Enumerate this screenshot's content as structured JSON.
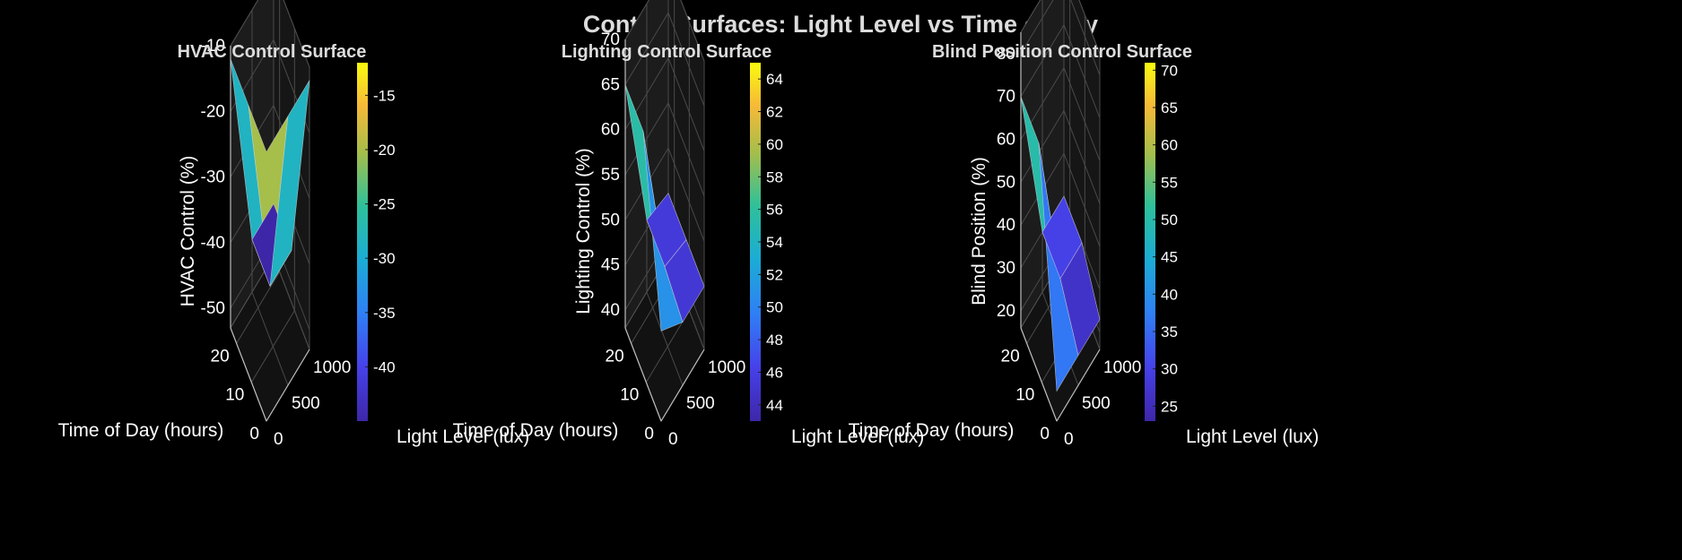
{
  "figure_title": "Control Surfaces: Light Level vs Time of Day",
  "chart_data": [
    {
      "type": "surface3d",
      "title": "HVAC Control Surface",
      "xlabel": "Time of Day (hours)",
      "ylabel": "Light Level (lux)",
      "zlabel": "HVAC Control (%)",
      "x_ticks": [
        "0",
        "10",
        "20"
      ],
      "y_ticks": [
        "0",
        "500",
        "1000"
      ],
      "z_ticks": [
        "-50",
        "-40",
        "-30",
        "-20",
        "-10"
      ],
      "zlim": [
        -53,
        -10
      ],
      "colorbar": {
        "ticks": [
          "-15",
          "-20",
          "-25",
          "-30",
          "-35",
          "-40"
        ],
        "range": [
          -45,
          -12
        ],
        "colormap": "parula"
      },
      "surface": {
        "time_hours": [
          0,
          12,
          24
        ],
        "light_lux": [
          0,
          500,
          1000
        ],
        "z": [
          [
            -12,
            -12,
            -12
          ],
          [
            -12,
            -45,
            -45
          ],
          [
            -12,
            -45,
            -45
          ]
        ]
      }
    },
    {
      "type": "surface3d",
      "title": "Lighting Control Surface",
      "xlabel": "Time of Day (hours)",
      "ylabel": "Light Level (lux)",
      "zlabel": "Lighting Control (%)",
      "x_ticks": [
        "0",
        "10",
        "20"
      ],
      "y_ticks": [
        "0",
        "500",
        "1000"
      ],
      "z_ticks": [
        "40",
        "45",
        "50",
        "55",
        "60",
        "65",
        "70"
      ],
      "zlim": [
        38,
        70
      ],
      "colorbar": {
        "ticks": [
          "44",
          "46",
          "48",
          "50",
          "52",
          "54",
          "56",
          "58",
          "60",
          "62",
          "64"
        ],
        "range": [
          43,
          65
        ],
        "colormap": "parula"
      },
      "surface": {
        "time_hours": [
          0,
          12,
          24
        ],
        "light_lux": [
          0,
          500,
          1000
        ],
        "z": [
          [
            48,
            45,
            45
          ],
          [
            65,
            46,
            45
          ],
          [
            65,
            46,
            45
          ]
        ]
      }
    },
    {
      "type": "surface3d",
      "title": "Blind Position Control Surface",
      "xlabel": "Time of Day (hours)",
      "ylabel": "Light Level (lux)",
      "zlabel": "Blind Position (%)",
      "x_ticks": [
        "0",
        "10",
        "20"
      ],
      "y_ticks": [
        "0",
        "500",
        "1000"
      ],
      "z_ticks": [
        "20",
        "30",
        "40",
        "50",
        "60",
        "70",
        "80"
      ],
      "zlim": [
        16,
        85
      ],
      "colorbar": {
        "ticks": [
          "25",
          "30",
          "35",
          "40",
          "45",
          "50",
          "55",
          "60",
          "65",
          "70"
        ],
        "range": [
          23,
          71
        ],
        "colormap": "parula"
      },
      "surface": {
        "time_hours": [
          0,
          12,
          24
        ],
        "light_lux": [
          0,
          500,
          1000
        ],
        "z": [
          [
            23,
            23,
            23
          ],
          [
            70,
            30,
            30
          ],
          [
            70,
            30,
            30
          ]
        ]
      }
    }
  ]
}
